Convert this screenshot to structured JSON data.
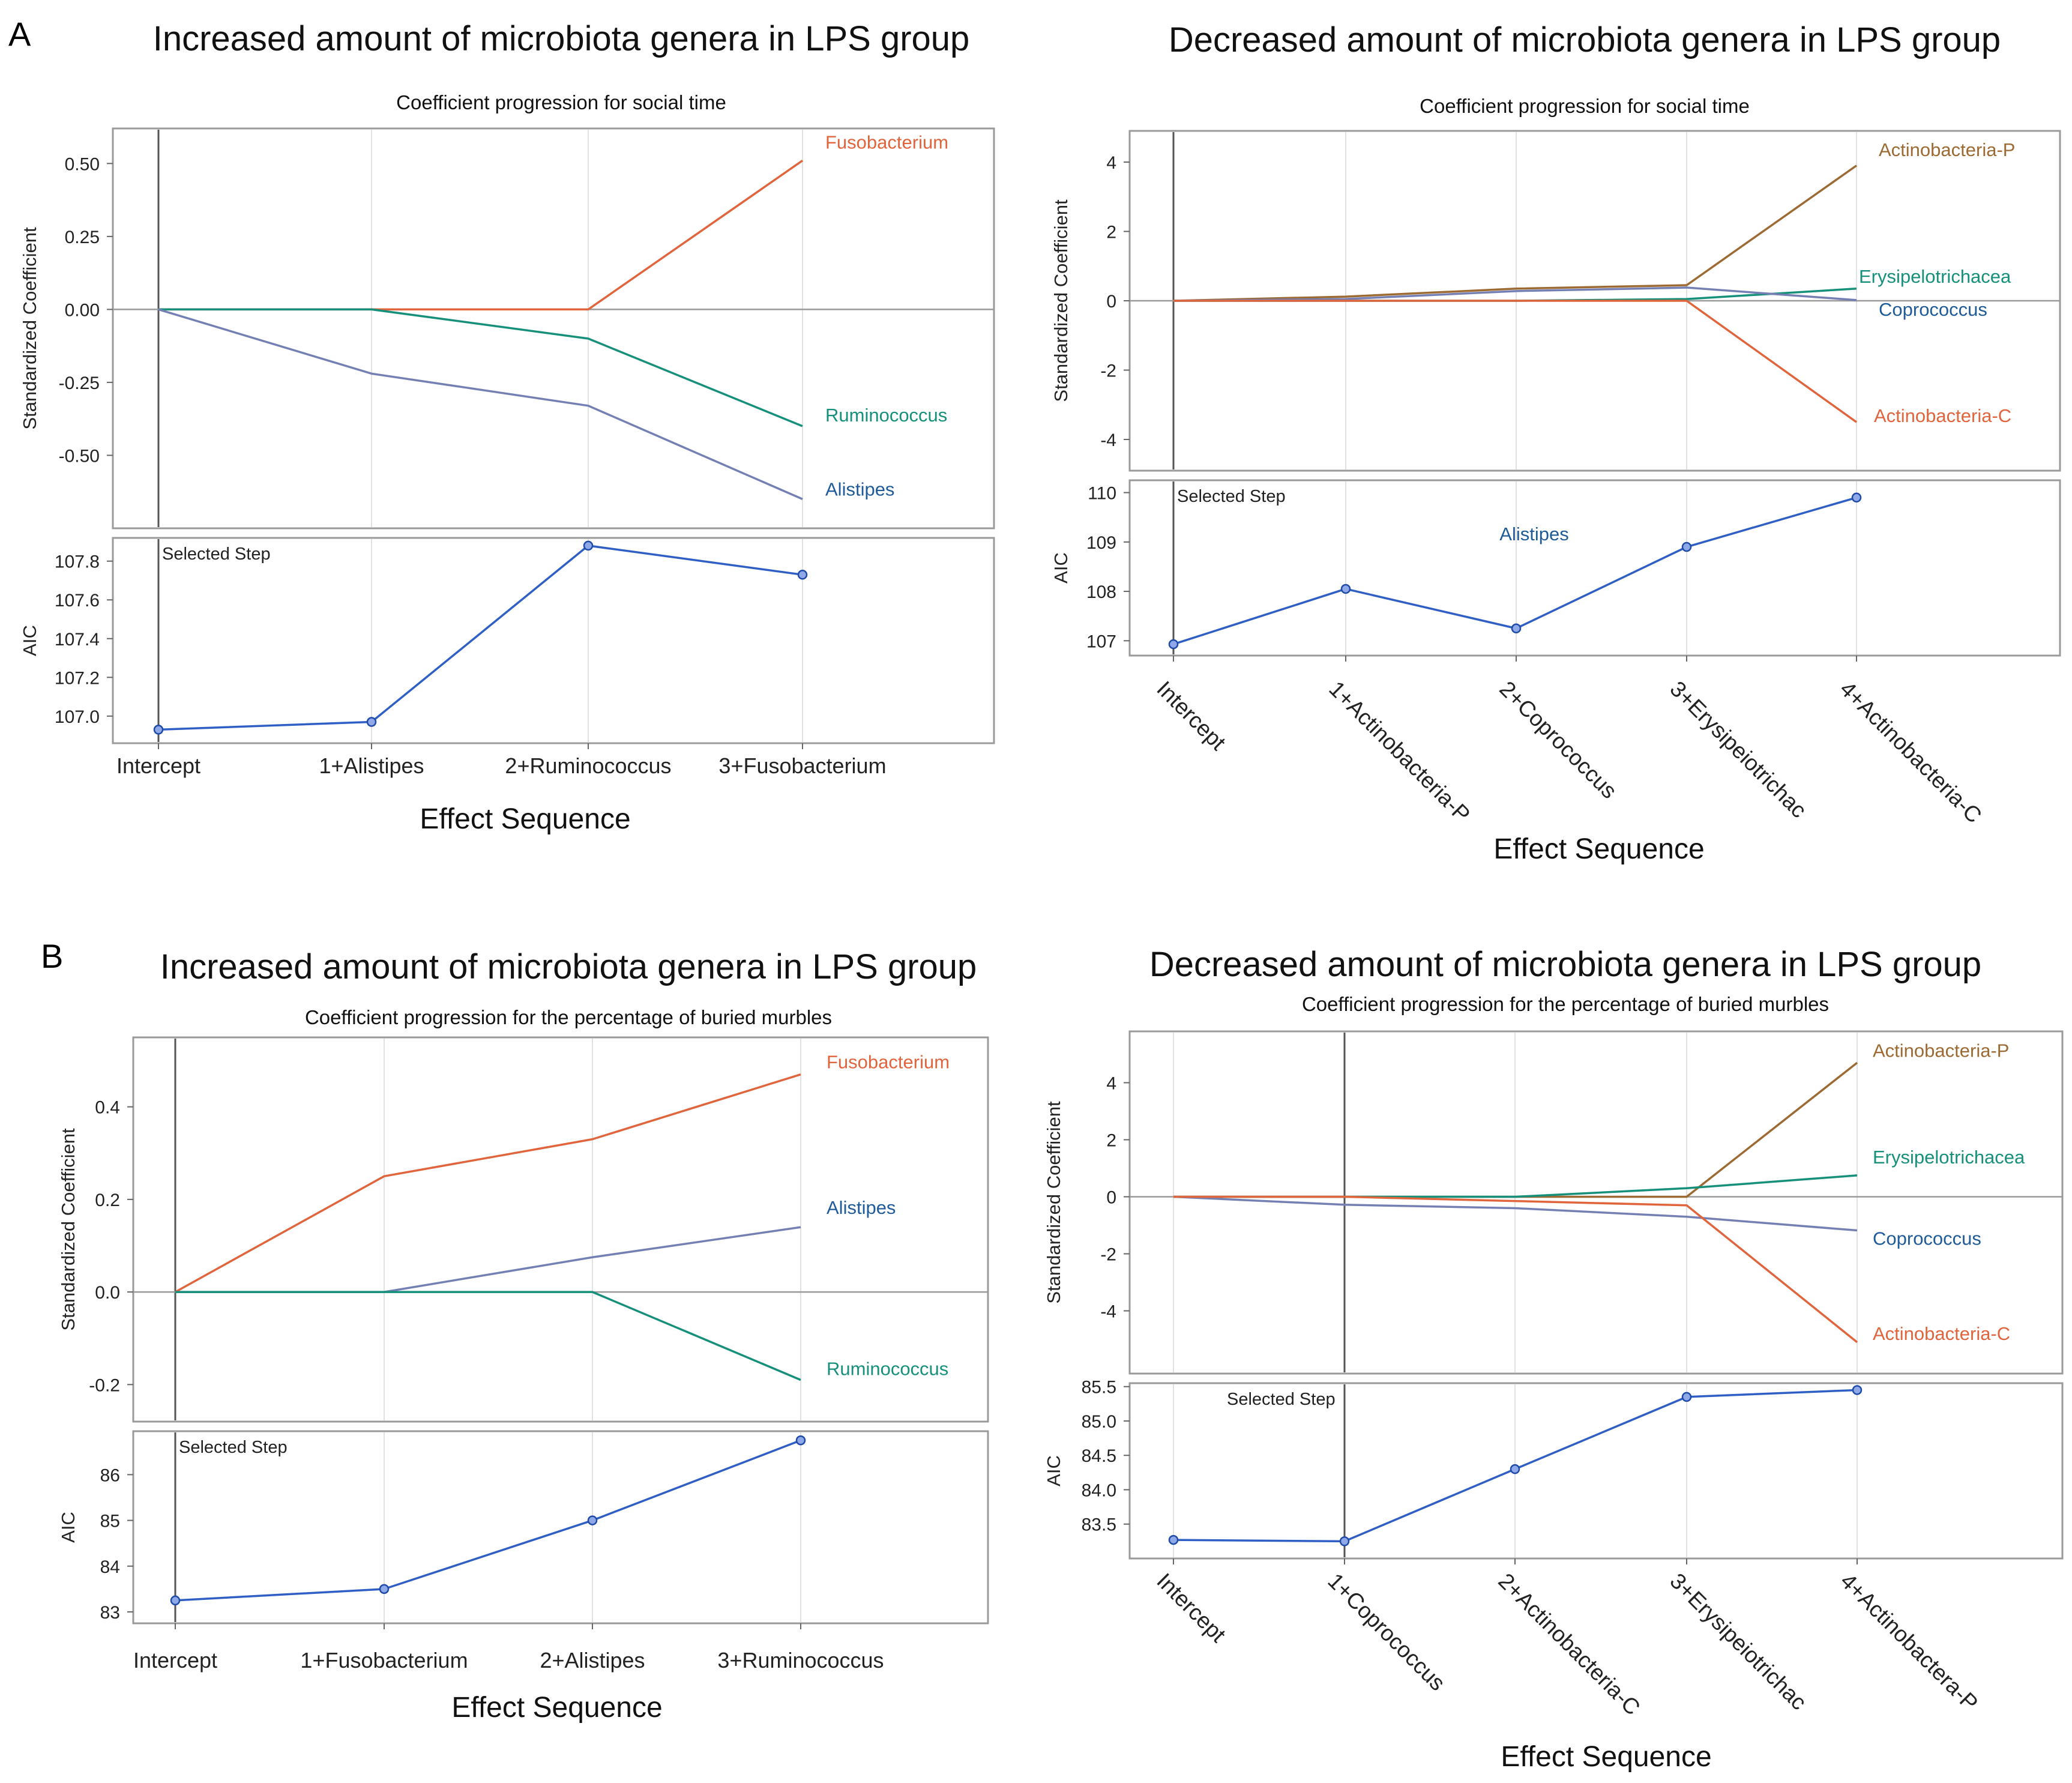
{
  "panel_labels": [
    "A",
    "B"
  ],
  "chart_data": [
    {
      "type": "line",
      "panel": "A",
      "title": "Increased amount of microbiota genera in LPS group",
      "subtitle": "Coefficient progression for social time",
      "xlabel": "Effect Sequence",
      "categories": [
        "Intercept",
        "1+Alistipes",
        "2+Ruminococcus",
        "3+Fusobacterium"
      ],
      "tick_rotated": false,
      "coef": {
        "ylabel": "Standardized Coefficient",
        "ylim": [
          -0.75,
          0.62
        ],
        "ticks": [
          0.5,
          0.25,
          0,
          -0.25,
          -0.5
        ],
        "tick_labels": [
          "0.50",
          "0.25",
          "0.00",
          "-0.25",
          "-0.50"
        ],
        "series": [
          {
            "name": "Fusobacterium",
            "color": "#e0643c",
            "values": [
              0,
              0,
              0,
              0.51
            ]
          },
          {
            "name": "Ruminococcus",
            "color": "#16907a",
            "values": [
              0,
              0,
              -0.1,
              -0.4
            ]
          },
          {
            "name": "Alistipes",
            "color": "#7480b4",
            "label_color": "#1f5b99",
            "values": [
              0,
              -0.22,
              -0.33,
              -0.65
            ]
          }
        ]
      },
      "aic": {
        "ylabel": "AIC",
        "ylim": [
          106.86,
          107.92
        ],
        "ticks": [
          107.8,
          107.6,
          107.4,
          107.2,
          107.0
        ],
        "tick_labels": [
          "107.8",
          "107.6",
          "107.4",
          "107.2",
          "107.0"
        ],
        "values": [
          106.93,
          106.97,
          107.88,
          107.73
        ],
        "annotation": "Selected Step"
      },
      "selected_step_index": 0,
      "selected_label": null
    },
    {
      "type": "line",
      "panel": "A",
      "title": "Decreased amount of microbiota genera in LPS group",
      "subtitle": "Coefficient progression for social time",
      "xlabel": "Effect Sequence",
      "categories": [
        "Intercept",
        "1+Actinobacteria-P",
        "2+Coprococcus",
        "3+Erysipeiotrichac",
        "4+Actinobacteria-C"
      ],
      "tick_rotated": true,
      "coef": {
        "ylabel": "Standardized Coefficient",
        "ylim": [
          -4.9,
          4.9
        ],
        "ticks": [
          4,
          2,
          0,
          -2,
          -4
        ],
        "tick_labels": [
          "4",
          "2",
          "0",
          "-2",
          "-4"
        ],
        "series": [
          {
            "name": "Actinobacteria-P",
            "color": "#9c6a32",
            "values": [
              0,
              0.12,
              0.35,
              0.45,
              3.9
            ]
          },
          {
            "name": "Erysipelotrichacea",
            "color": "#16907a",
            "values": [
              0,
              0,
              0,
              0.05,
              0.35
            ]
          },
          {
            "name": "Coprococcus",
            "color": "#7480b4",
            "label_color": "#1f5b99",
            "values": [
              0,
              0.05,
              0.28,
              0.38,
              0.02
            ]
          },
          {
            "name": "Actinobacteria-C",
            "color": "#e0643c",
            "values": [
              0,
              0,
              0,
              0,
              -3.5
            ]
          }
        ]
      },
      "aic": {
        "ylabel": "AIC",
        "ylim": [
          106.7,
          110.25
        ],
        "ticks": [
          110,
          109,
          108,
          107
        ],
        "tick_labels": [
          "110",
          "109",
          "108",
          "107"
        ],
        "values": [
          106.93,
          108.05,
          107.25,
          108.9,
          109.9
        ],
        "annotation": "Selected Step"
      },
      "selected_step_index": 0,
      "selected_label": "Alistipes"
    },
    {
      "type": "line",
      "panel": "B",
      "title": "Increased amount of microbiota genera in LPS group",
      "subtitle": "Coefficient progression for the percentage  of buried murbles",
      "xlabel": "Effect Sequence",
      "categories": [
        "Intercept",
        "1+Fusobacterium",
        "2+Alistipes",
        "3+Ruminococcus"
      ],
      "tick_rotated": false,
      "coef": {
        "ylabel": "Standardized Coefficient",
        "ylim": [
          -0.28,
          0.55
        ],
        "ticks": [
          0.4,
          0.2,
          0,
          -0.2
        ],
        "tick_labels": [
          "0.4",
          "0.2",
          "0.0",
          "-0.2"
        ],
        "series": [
          {
            "name": "Fusobacterium",
            "color": "#e0643c",
            "values": [
              0,
              0.25,
              0.33,
              0.47
            ]
          },
          {
            "name": "Alistipes",
            "color": "#7480b4",
            "label_color": "#1f5b99",
            "values": [
              0,
              0,
              0.075,
              0.14
            ]
          },
          {
            "name": "Ruminococcus",
            "color": "#16907a",
            "values": [
              0,
              0,
              0,
              -0.19
            ]
          }
        ]
      },
      "aic": {
        "ylabel": "AIC",
        "ylim": [
          82.75,
          86.95
        ],
        "ticks": [
          86,
          85,
          84,
          83
        ],
        "tick_labels": [
          "86",
          "85",
          "84",
          "83"
        ],
        "values": [
          83.25,
          83.5,
          85.0,
          86.75
        ],
        "annotation": "Selected Step"
      },
      "selected_step_index": 0,
      "selected_label": null
    },
    {
      "type": "line",
      "panel": "B",
      "title": "Decreased amount of microbiota genera in LPS group",
      "subtitle": "Coefficient progression for the percentage  of buried murbles",
      "xlabel": "Effect Sequence",
      "categories": [
        "Intercept",
        "1+Coprococcus",
        "2+Actinobacteria-C",
        "3+Erysipeiotrichac",
        "4+Actinobactera-P"
      ],
      "tick_rotated": true,
      "coef": {
        "ylabel": "Standardized Coefficient",
        "ylim": [
          -6.2,
          5.8
        ],
        "ticks": [
          4,
          2,
          0,
          -2,
          -4
        ],
        "tick_labels": [
          "4",
          "2",
          "0",
          "-2",
          "-4"
        ],
        "series": [
          {
            "name": "Actinobacteria-P",
            "color": "#9c6a32",
            "values": [
              0,
              0,
              0,
              0,
              4.7
            ]
          },
          {
            "name": "Erysipelotrichacea",
            "color": "#16907a",
            "values": [
              0,
              0,
              0,
              0.3,
              0.75
            ]
          },
          {
            "name": "Coprococcus",
            "color": "#7480b4",
            "label_color": "#1f5b99",
            "values": [
              0,
              -0.28,
              -0.4,
              -0.7,
              -1.18
            ]
          },
          {
            "name": "Actinobacteria-C",
            "color": "#e0643c",
            "values": [
              0,
              0,
              -0.15,
              -0.3,
              -5.1
            ]
          }
        ]
      },
      "aic": {
        "ylabel": "AIC",
        "ylim": [
          83.0,
          85.55
        ],
        "ticks": [
          85.5,
          85.0,
          84.5,
          84.0,
          83.5
        ],
        "tick_labels": [
          "85.5",
          "85.0",
          "84.5",
          "84.0",
          "83.5"
        ],
        "values": [
          83.27,
          83.25,
          84.3,
          85.35,
          85.45
        ],
        "annotation": "Selected Step"
      },
      "selected_step_index": 1,
      "selected_label": null
    }
  ]
}
